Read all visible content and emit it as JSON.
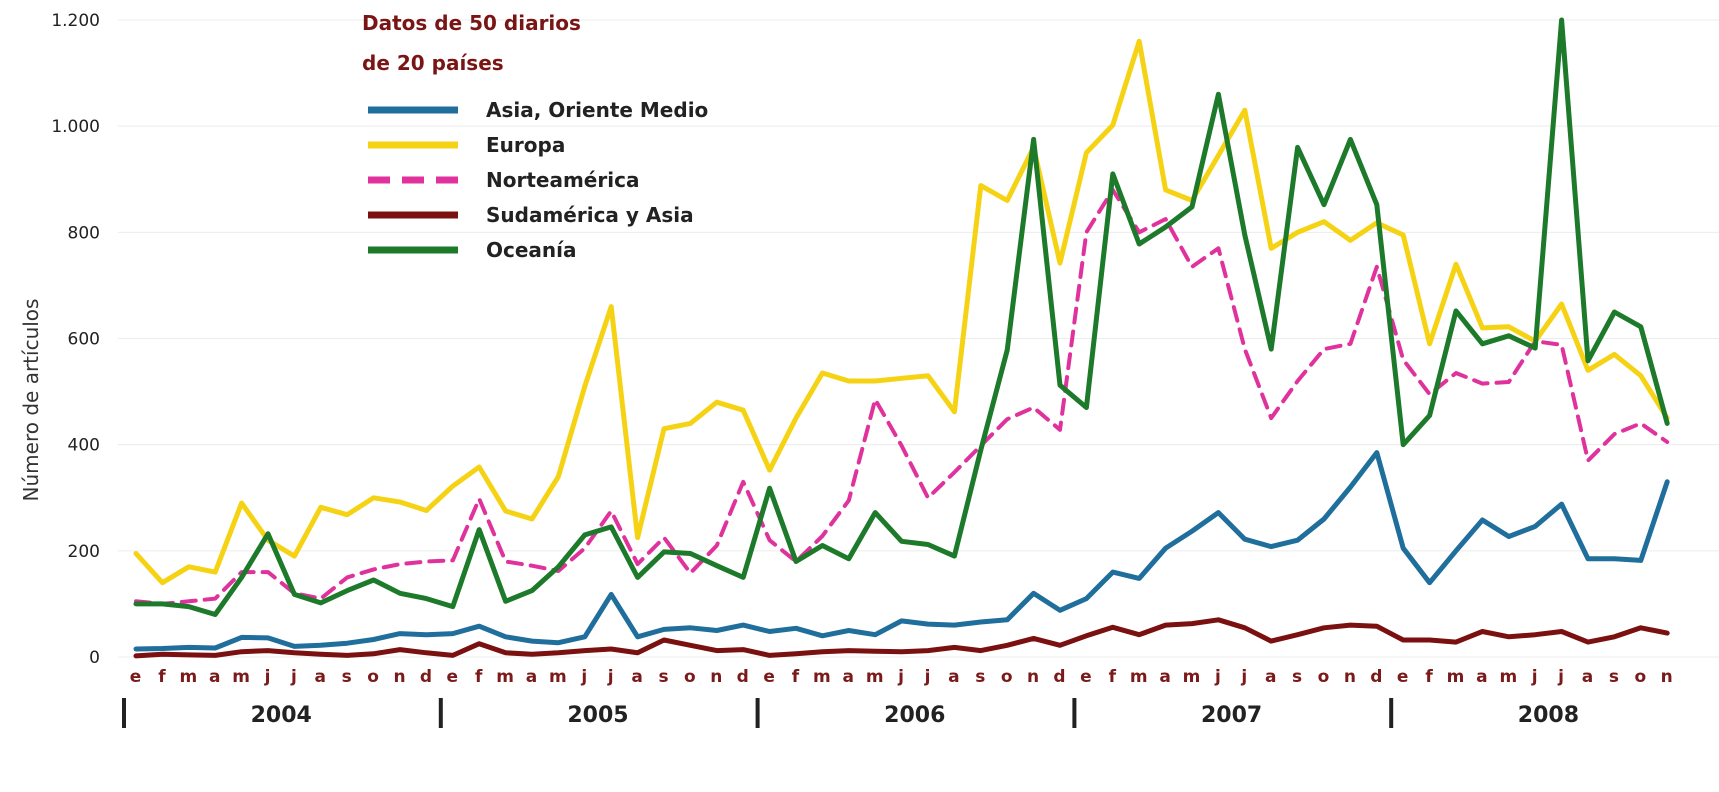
{
  "chart_data": {
    "type": "line",
    "title": "",
    "ylabel": "Número de artículos",
    "xlabel": "",
    "ylim": [
      0,
      1200
    ],
    "yticks": [
      0,
      200,
      400,
      600,
      800,
      1000,
      1200
    ],
    "ytick_labels": [
      "0",
      "200",
      "400",
      "600",
      "800",
      "1.000",
      "1.200"
    ],
    "grid": true,
    "legend_title": [
      "Datos de 50 diarios",
      "de 20 países"
    ],
    "legend_position": "top-left",
    "month_labels": [
      "e",
      "f",
      "m",
      "a",
      "m",
      "j",
      "j",
      "a",
      "s",
      "o",
      "n",
      "d"
    ],
    "years": [
      "2004",
      "2005",
      "2006",
      "2007",
      "2008"
    ],
    "months_count": 59,
    "series": [
      {
        "name": "Asia, Oriente Medio",
        "color": "#1f6e9c",
        "style": "solid",
        "values": [
          15,
          16,
          18,
          17,
          37,
          36,
          20,
          22,
          26,
          33,
          44,
          42,
          44,
          58,
          38,
          30,
          27,
          38,
          118,
          38,
          52,
          55,
          50,
          60,
          48,
          54,
          40,
          50,
          42,
          68,
          62,
          60,
          66,
          70,
          120,
          88,
          110,
          160,
          148,
          205,
          237,
          272,
          222,
          208,
          220,
          260,
          320,
          385,
          205,
          140,
          200,
          258,
          227,
          246,
          288,
          185,
          185,
          182,
          330
        ]
      },
      {
        "name": "Europa",
        "color": "#f5d314",
        "style": "solid",
        "values": [
          195,
          140,
          170,
          160,
          290,
          220,
          190,
          282,
          268,
          300,
          292,
          276,
          322,
          358,
          275,
          260,
          340,
          510,
          660,
          225,
          430,
          440,
          480,
          465,
          352,
          450,
          535,
          520,
          520,
          525,
          530,
          462,
          888,
          860,
          960,
          742,
          950,
          1002,
          1160,
          880,
          860,
          945,
          1030,
          770,
          800,
          820,
          785,
          818,
          795,
          590,
          740,
          620,
          622,
          595,
          665,
          540,
          570,
          530,
          450
        ]
      },
      {
        "name": "Norteamérica",
        "color": "#e0329d",
        "style": "dashed",
        "values": [
          105,
          100,
          105,
          110,
          160,
          160,
          120,
          110,
          150,
          165,
          175,
          180,
          182,
          298,
          180,
          172,
          162,
          205,
          275,
          175,
          225,
          158,
          210,
          330,
          220,
          180,
          228,
          295,
          485,
          398,
          300,
          348,
          398,
          448,
          470,
          428,
          800,
          880,
          800,
          825,
          735,
          770,
          580,
          450,
          520,
          580,
          590,
          735,
          560,
          495,
          535,
          515,
          518,
          595,
          588,
          370,
          420,
          440,
          405
        ]
      },
      {
        "name": "Sudamérica y Asia",
        "color": "#7a1010",
        "style": "solid",
        "values": [
          2,
          5,
          4,
          3,
          10,
          12,
          8,
          5,
          3,
          6,
          14,
          8,
          3,
          25,
          8,
          5,
          8,
          12,
          15,
          8,
          32,
          22,
          12,
          14,
          3,
          6,
          10,
          12,
          11,
          10,
          12,
          18,
          12,
          22,
          35,
          22,
          40,
          56,
          42,
          60,
          63,
          70,
          55,
          30,
          42,
          55,
          60,
          58,
          32,
          32,
          28,
          48,
          38,
          42,
          48,
          28,
          38,
          55,
          45
        ]
      },
      {
        "name": "Oceanía",
        "color": "#1c7a2a",
        "style": "solid",
        "values": [
          100,
          100,
          95,
          80,
          150,
          232,
          118,
          102,
          125,
          145,
          120,
          110,
          95,
          240,
          105,
          125,
          170,
          230,
          245,
          150,
          198,
          195,
          172,
          150,
          318,
          180,
          210,
          185,
          272,
          218,
          212,
          190,
          390,
          578,
          975,
          512,
          470,
          910,
          778,
          810,
          848,
          1060,
          795,
          580,
          960,
          852,
          975,
          852,
          400,
          455,
          652,
          590,
          605,
          582,
          1200,
          558,
          650,
          622,
          440
        ]
      }
    ]
  }
}
